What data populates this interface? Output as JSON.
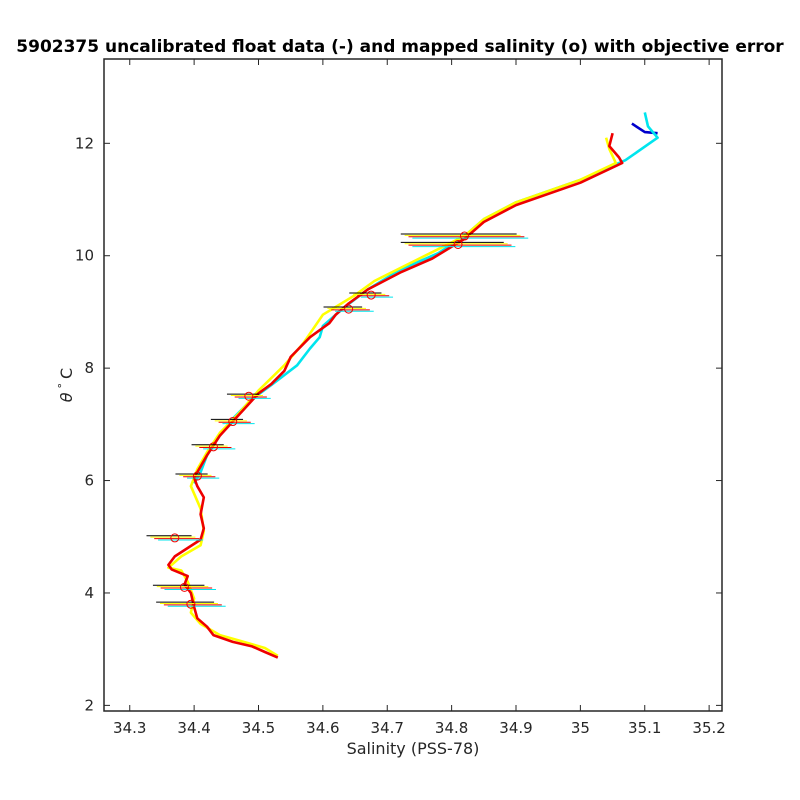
{
  "chart_data": {
    "type": "line",
    "title": "5902375 uncalibrated float data (-) and mapped salinity (o) with objective error",
    "xlabel": "Salinity (PSS-78)",
    "ylabel_symbol": "θ",
    "ylabel_degree": "°",
    "ylabel_unit": "C",
    "xlim": [
      34.26,
      35.22
    ],
    "ylim": [
      1.9,
      13.5
    ],
    "xticks": [
      34.3,
      34.4,
      34.5,
      34.6,
      34.7,
      34.8,
      34.9,
      35,
      35.1,
      35.2
    ],
    "xtick_labels": [
      "34.3",
      "34.4",
      "34.5",
      "34.6",
      "34.7",
      "34.8",
      "34.9",
      "35",
      "35.1",
      "35.2"
    ],
    "yticks": [
      2,
      4,
      6,
      8,
      10,
      12
    ],
    "ytick_labels": [
      "2",
      "4",
      "6",
      "8",
      "10",
      "12"
    ],
    "grid": false,
    "series": [
      {
        "color": "#0000cc",
        "points": [
          [
            35.08,
            12.35
          ],
          [
            35.1,
            12.2
          ],
          [
            35.12,
            12.18
          ]
        ]
      },
      {
        "color": "#00e5ee",
        "points": [
          [
            35.1,
            12.55
          ],
          [
            35.105,
            12.3
          ],
          [
            35.12,
            12.1
          ],
          [
            35.07,
            11.7
          ],
          [
            35.0,
            11.35
          ],
          [
            34.9,
            10.95
          ],
          [
            34.85,
            10.65
          ],
          [
            34.82,
            10.35
          ],
          [
            34.78,
            10.05
          ],
          [
            34.72,
            9.75
          ],
          [
            34.67,
            9.4
          ],
          [
            34.63,
            9.05
          ],
          [
            34.6,
            8.75
          ],
          [
            34.595,
            8.55
          ],
          [
            34.58,
            8.35
          ],
          [
            34.56,
            8.05
          ],
          [
            34.52,
            7.7
          ],
          [
            34.49,
            7.45
          ],
          [
            34.46,
            7.1
          ],
          [
            34.44,
            6.8
          ],
          [
            34.42,
            6.45
          ],
          [
            34.41,
            6.15
          ],
          [
            34.4,
            5.95
          ]
        ]
      },
      {
        "color": "#ffff00",
        "points": [
          [
            35.04,
            12.1
          ],
          [
            35.045,
            11.9
          ],
          [
            35.055,
            11.65
          ],
          [
            35.0,
            11.35
          ],
          [
            34.9,
            10.95
          ],
          [
            34.85,
            10.65
          ],
          [
            34.82,
            10.35
          ],
          [
            34.75,
            9.95
          ],
          [
            34.68,
            9.55
          ],
          [
            34.65,
            9.3
          ],
          [
            34.6,
            8.95
          ],
          [
            34.57,
            8.45
          ],
          [
            34.54,
            8.05
          ],
          [
            34.5,
            7.6
          ],
          [
            34.47,
            7.2
          ],
          [
            34.44,
            6.85
          ],
          [
            34.42,
            6.5
          ],
          [
            34.405,
            6.2
          ],
          [
            34.395,
            5.9
          ],
          [
            34.41,
            5.5
          ],
          [
            34.415,
            5.1
          ],
          [
            34.41,
            4.85
          ],
          [
            34.38,
            4.65
          ],
          [
            34.36,
            4.45
          ],
          [
            34.38,
            4.4
          ],
          [
            34.39,
            4.2
          ],
          [
            34.4,
            3.9
          ],
          [
            34.395,
            3.65
          ],
          [
            34.41,
            3.45
          ],
          [
            34.44,
            3.25
          ],
          [
            34.48,
            3.12
          ],
          [
            34.51,
            3.02
          ],
          [
            34.53,
            2.88
          ]
        ]
      },
      {
        "color": "#ee0000",
        "points": [
          [
            35.05,
            12.18
          ],
          [
            35.045,
            11.95
          ],
          [
            35.06,
            11.75
          ],
          [
            35.065,
            11.65
          ],
          [
            35.0,
            11.3
          ],
          [
            34.9,
            10.9
          ],
          [
            34.85,
            10.6
          ],
          [
            34.82,
            10.3
          ],
          [
            34.77,
            9.95
          ],
          [
            34.72,
            9.7
          ],
          [
            34.67,
            9.4
          ],
          [
            34.64,
            9.15
          ],
          [
            34.62,
            8.95
          ],
          [
            34.61,
            8.8
          ],
          [
            34.58,
            8.55
          ],
          [
            34.55,
            8.2
          ],
          [
            34.54,
            7.95
          ],
          [
            34.52,
            7.72
          ],
          [
            34.5,
            7.55
          ],
          [
            34.48,
            7.3
          ],
          [
            34.46,
            7.05
          ],
          [
            34.44,
            6.8
          ],
          [
            34.42,
            6.45
          ],
          [
            34.41,
            6.25
          ],
          [
            34.4,
            6.05
          ],
          [
            34.405,
            5.9
          ],
          [
            34.415,
            5.7
          ],
          [
            34.41,
            5.4
          ],
          [
            34.415,
            5.15
          ],
          [
            34.41,
            4.95
          ],
          [
            34.39,
            4.8
          ],
          [
            34.37,
            4.65
          ],
          [
            34.36,
            4.5
          ],
          [
            34.365,
            4.42
          ],
          [
            34.39,
            4.3
          ],
          [
            34.385,
            4.15
          ],
          [
            34.395,
            4.0
          ],
          [
            34.4,
            3.75
          ],
          [
            34.405,
            3.55
          ],
          [
            34.42,
            3.4
          ],
          [
            34.43,
            3.25
          ],
          [
            34.46,
            3.13
          ],
          [
            34.49,
            3.05
          ],
          [
            34.51,
            2.95
          ],
          [
            34.53,
            2.85
          ]
        ]
      }
    ],
    "mapped": [
      {
        "x": 34.81,
        "y": 10.2,
        "err": 0.08
      },
      {
        "x": 34.82,
        "y": 10.35,
        "err": 0.09
      },
      {
        "x": 34.675,
        "y": 9.3,
        "err": 0.025
      },
      {
        "x": 34.64,
        "y": 9.05,
        "err": 0.03
      },
      {
        "x": 34.485,
        "y": 7.5,
        "err": 0.025
      },
      {
        "x": 34.46,
        "y": 7.05,
        "err": 0.025
      },
      {
        "x": 34.43,
        "y": 6.6,
        "err": 0.025
      },
      {
        "x": 34.405,
        "y": 6.08,
        "err": 0.025
      },
      {
        "x": 34.37,
        "y": 4.98,
        "err": 0.035
      },
      {
        "x": 34.385,
        "y": 4.1,
        "err": 0.04
      },
      {
        "x": 34.395,
        "y": 3.8,
        "err": 0.045
      }
    ],
    "errorbar_colors": [
      "#000000",
      "#ffff00",
      "#ee0000",
      "#00e5ee"
    ],
    "marker_color": "#ee0000",
    "marker_fill": "#ffff00"
  }
}
